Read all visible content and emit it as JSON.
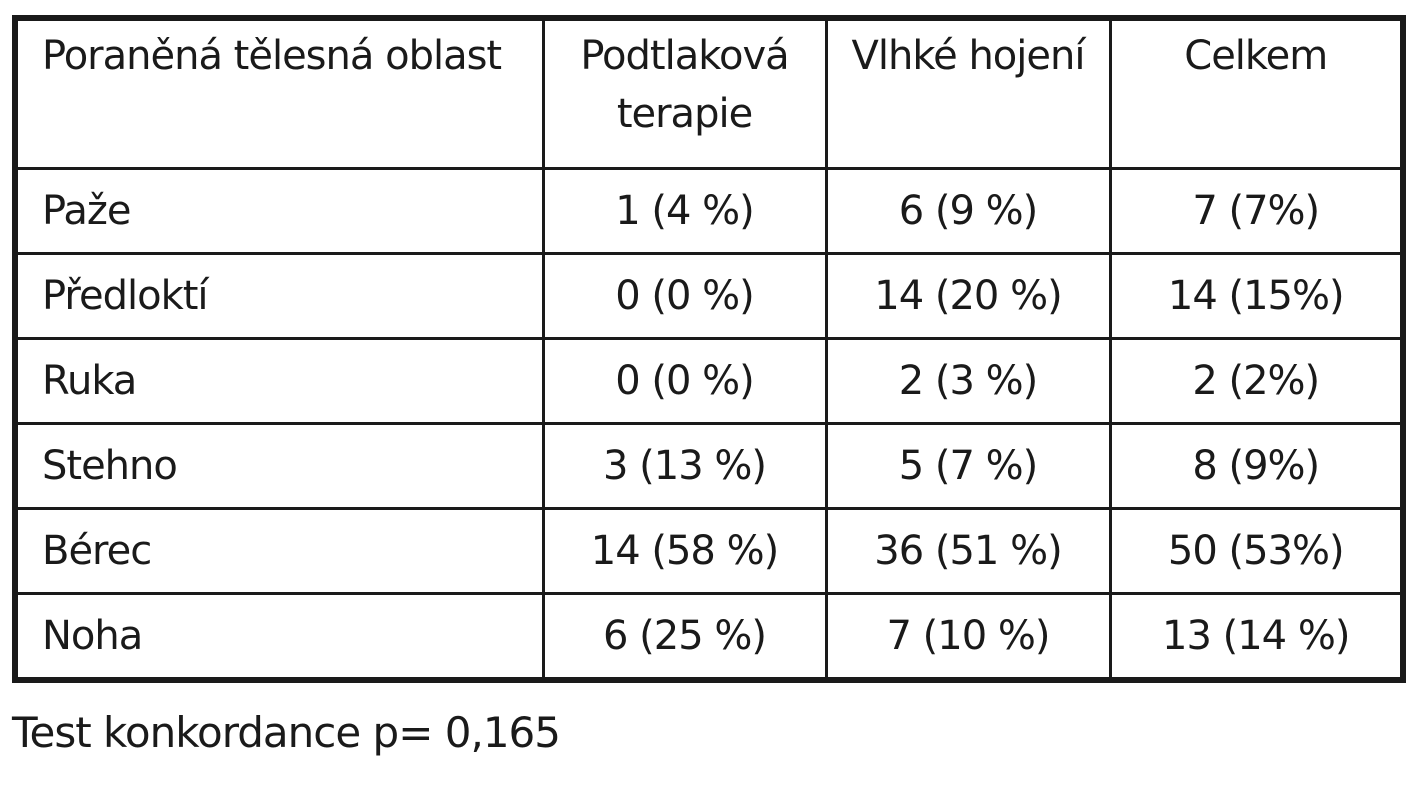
{
  "table": {
    "header": [
      "Poraněná tělesná oblast",
      "Podtlaková terapie",
      "Vlhké hojení",
      "Celkem"
    ],
    "rows": [
      [
        "Paže",
        "1 (4 %)",
        "6 (9 %)",
        "7 (7%)"
      ],
      [
        "Předloktí",
        "0 (0 %)",
        "14 (20 %)",
        "14 (15%)"
      ],
      [
        "Ruka",
        "0 (0 %)",
        "2 (3 %)",
        "2 (2%)"
      ],
      [
        "Stehno",
        "3 (13 %)",
        "5 (7 %)",
        "8 (9%)"
      ],
      [
        "Bérec",
        "14 (58 %)",
        "36 (51 %)",
        "50 (53%)"
      ],
      [
        "Noha",
        "6 (25 %)",
        "7 (10 %)",
        "13 (14 %)"
      ]
    ]
  },
  "footer": "Test konkordance p= 0,165"
}
